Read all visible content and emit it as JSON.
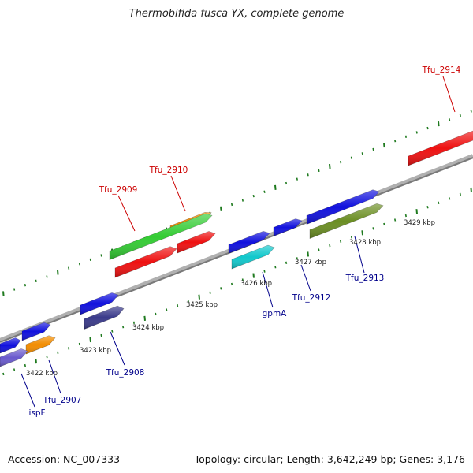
{
  "title": "Thermobifida fusca YX, complete genome",
  "footer": {
    "accession": "Accession: NC_007333",
    "info": "Topology: circular; Length: 3,642,249 bp; Genes: 3,176"
  },
  "colors": {
    "backbone": "#8a8a8a",
    "tick": "#1f7a1f",
    "forward_label": "#cc0000",
    "reverse_label": "#00008b",
    "ruler_label": "#222222"
  },
  "ruler_labels": [
    "3422 kbp",
    "3423 kbp",
    "3424 kbp",
    "3425 kbp",
    "3426 kbp",
    "3427 kbp",
    "3428 kbp",
    "3429 kbp"
  ],
  "gene_labels": [
    {
      "id": "tfu2914",
      "text": "Tfu_2914",
      "strand": "forward"
    },
    {
      "id": "tfu2910",
      "text": "Tfu_2910",
      "strand": "forward"
    },
    {
      "id": "tfu2909",
      "text": "Tfu_2909",
      "strand": "forward"
    },
    {
      "id": "tfu2913",
      "text": "Tfu_2913",
      "strand": "reverse"
    },
    {
      "id": "tfu2912",
      "text": "Tfu_2912",
      "strand": "reverse"
    },
    {
      "id": "gpma",
      "text": "gpmA",
      "strand": "reverse"
    },
    {
      "id": "tfu2908",
      "text": "Tfu_2908",
      "strand": "reverse"
    },
    {
      "id": "tfu2907",
      "text": "Tfu_2907",
      "strand": "reverse"
    },
    {
      "id": "ispf",
      "text": "ispF",
      "strand": "reverse"
    }
  ],
  "features": [
    {
      "id": "f-tfu2914",
      "color": "#ee1111",
      "dir": 1
    },
    {
      "id": "f-tfu2910a",
      "color": "#f28c00",
      "dir": 1
    },
    {
      "id": "f-tfu2910b",
      "color": "#33cc33",
      "dir": 1
    },
    {
      "id": "f-tfu2909",
      "color": "#ee1111",
      "dir": 1
    },
    {
      "id": "f-red2",
      "color": "#ee1111",
      "dir": 1
    },
    {
      "id": "f-blue-a",
      "color": "#1111dd",
      "dir": 1
    },
    {
      "id": "f-blue-b",
      "color": "#1111dd",
      "dir": 1
    },
    {
      "id": "f-blue-c",
      "color": "#1111dd",
      "dir": 1
    },
    {
      "id": "f-cyan",
      "color": "#11c8cc",
      "dir": 1
    },
    {
      "id": "f-olive",
      "color": "#6b8e23",
      "dir": 1
    },
    {
      "id": "f-blue-d",
      "color": "#1111dd",
      "dir": 1
    },
    {
      "id": "f-navy",
      "color": "#3a3a8a",
      "dir": 1
    },
    {
      "id": "f-blue-e",
      "color": "#1111dd",
      "dir": 1
    },
    {
      "id": "f-blue-f",
      "color": "#1111dd",
      "dir": 1
    },
    {
      "id": "f-orange",
      "color": "#f28c00",
      "dir": 1
    },
    {
      "id": "f-purple",
      "color": "#6a5acd",
      "dir": 1
    }
  ]
}
